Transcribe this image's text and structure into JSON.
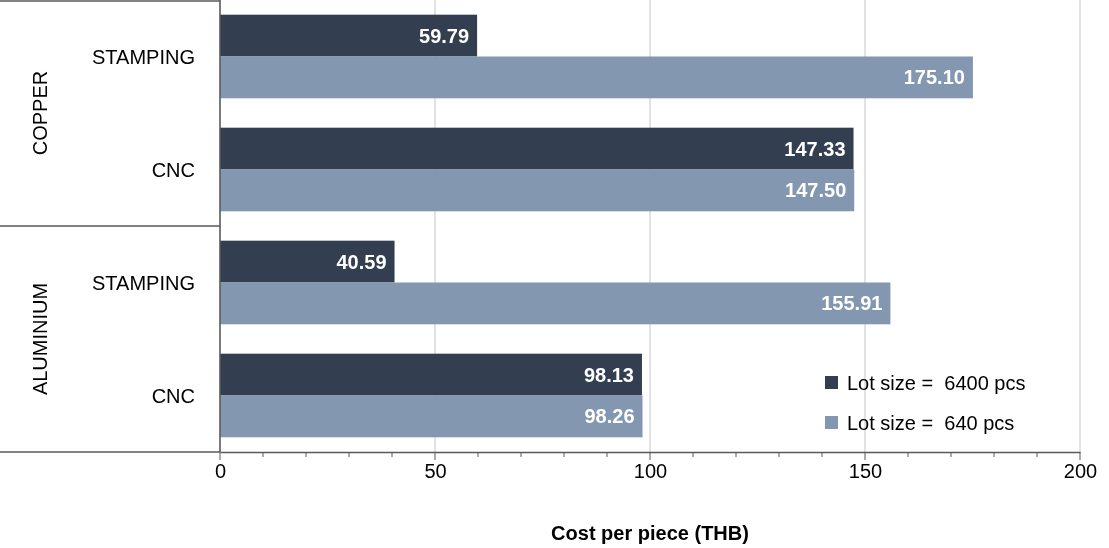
{
  "chart_data": {
    "type": "bar",
    "orientation": "horizontal",
    "xlabel": "Cost per piece (THB)",
    "categories": [
      "STAMPING",
      "CNC",
      "STAMPING",
      "CNC"
    ],
    "series": [
      {
        "name": "Lot size =  6400 pcs",
        "color": "#333f50",
        "values": [
          59.79,
          147.33,
          40.59,
          98.13
        ],
        "value_labels": [
          "59.79",
          "147.33",
          "40.59",
          "98.13"
        ]
      },
      {
        "name": "Lot size =  640 pcs",
        "color": "#8497b0",
        "values": [
          175.1,
          147.5,
          155.91,
          98.26
        ],
        "value_labels": [
          "175.10",
          "147.50",
          "155.91",
          "98.26"
        ]
      }
    ],
    "annotations": [
      "COPPER",
      "ALUMINIUM"
    ],
    "xlim": [
      0,
      200
    ],
    "xticks": [
      0,
      50,
      100,
      150,
      200
    ],
    "grid": "x",
    "legend": "bottom right"
  }
}
